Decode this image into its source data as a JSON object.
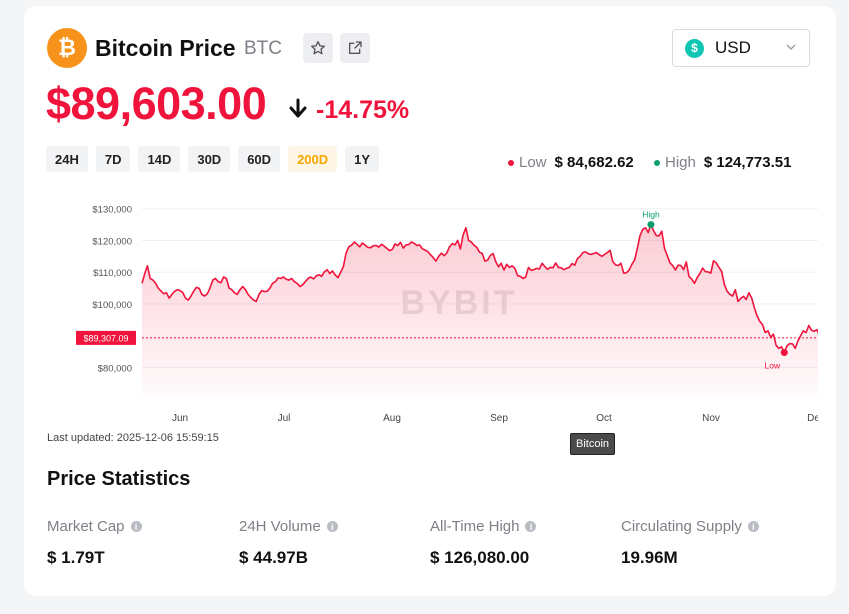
{
  "header": {
    "coin_symbol": "₿",
    "title": "Bitcoin Price",
    "ticker": "BTC",
    "star_icon": "star-icon",
    "share_icon": "external-link-icon"
  },
  "currency": {
    "icon": "$",
    "label": "USD"
  },
  "price": {
    "value": "$89,603.00",
    "change": "-14.75%",
    "color": "#f0143c"
  },
  "ranges": [
    {
      "label": "24H",
      "active": false
    },
    {
      "label": "7D",
      "active": false
    },
    {
      "label": "14D",
      "active": false
    },
    {
      "label": "30D",
      "active": false
    },
    {
      "label": "60D",
      "active": false
    },
    {
      "label": "200D",
      "active": true
    },
    {
      "label": "1Y",
      "active": false
    }
  ],
  "low_high": {
    "low_label": "Low",
    "low_value": "$ 84,682.62",
    "low_color": "#f0143c",
    "high_label": "High",
    "high_value": "$ 124,773.51",
    "high_color": "#0a9e6b"
  },
  "chart_data": {
    "type": "area",
    "yticks": [
      "$130,000",
      "$120,000",
      "$110,000",
      "$100,000",
      "$80,000"
    ],
    "ytick_values": [
      130000,
      120000,
      110000,
      100000,
      80000
    ],
    "ylim": [
      71000,
      134000
    ],
    "xticks": [
      "Jun",
      "Jul",
      "Aug",
      "Sep",
      "Oct",
      "Nov",
      "Dec"
    ],
    "current_price_label": "$89,307.09",
    "current_price": 89307.09,
    "high_marker_label": "High",
    "low_marker_label": "Low",
    "watermark": "BYBIT",
    "series": [
      {
        "values": [
          106500,
          109500,
          112000,
          108000,
          107500,
          106500,
          105000,
          104000,
          103200,
          103500,
          101800,
          103000,
          104000,
          104500,
          104200,
          103600,
          101800,
          101200,
          102500,
          104000,
          105200,
          104900,
          103000,
          102500,
          103200,
          105000,
          107500,
          108000,
          107000,
          106700,
          108500,
          108000,
          105000,
          104500,
          103500,
          103000,
          104500,
          105500,
          104500,
          103000,
          102000,
          101200,
          100800,
          103000,
          104200,
          103900,
          104000,
          105000,
          106500,
          107000,
          108200,
          108000,
          108500,
          107800,
          107500,
          108000,
          107000,
          106500,
          105500,
          106000,
          107000,
          108000,
          108500,
          107900,
          108800,
          109200,
          108700,
          110100,
          110800,
          109600,
          110400,
          109100,
          108300,
          110000,
          111800,
          116000,
          118000,
          118500,
          119500,
          118800,
          118000,
          119200,
          118500,
          117800,
          117700,
          118300,
          118400,
          117900,
          118800,
          118200,
          117500,
          116800,
          117200,
          118900,
          118400,
          119400,
          117600,
          118600,
          118700,
          119500,
          119100,
          118400,
          118600,
          117400,
          117000,
          116500,
          115500,
          114600,
          113500,
          115000,
          116000,
          115200,
          116000,
          118000,
          119000,
          118600,
          120000,
          117300,
          121700,
          124000,
          120000,
          119500,
          118500,
          117800,
          116300,
          115900,
          113500,
          113800,
          115300,
          115900,
          113300,
          111700,
          112800,
          110700,
          112500,
          111500,
          112000,
          111200,
          108900,
          108700,
          108000,
          108500,
          111500,
          110600,
          110800,
          111200,
          111000,
          112800,
          111800,
          110900,
          111500,
          111400,
          112900,
          111500,
          111400,
          110800,
          111200,
          111500,
          112700,
          112200,
          114300,
          115000,
          116200,
          116400,
          115800,
          115600,
          115900,
          116200,
          115500,
          115000,
          115600,
          116200,
          116900,
          113300,
          112300,
          112100,
          112800,
          109700,
          109800,
          110700,
          112500,
          113800,
          117500,
          121500,
          123500,
          124000,
          122500,
          125000,
          123000,
          121500,
          121500,
          122900,
          117500,
          115200,
          112900,
          112100,
          110700,
          112200,
          112100,
          110800,
          113200,
          108600,
          107800,
          106500,
          108300,
          109600,
          111300,
          110200,
          110100,
          109700,
          113600,
          112900,
          111500,
          110200,
          106100,
          104000,
          103000,
          102500,
          104500,
          100800,
          101700,
          102400,
          101400,
          103500,
          101900,
          98800,
          96200,
          94500,
          93500,
          91000,
          91500,
          89500,
          90500,
          87000,
          86000,
          86500,
          84682,
          86800,
          87500,
          87400,
          86000,
          88300,
          90000,
          91500,
          91000,
          93200,
          91700,
          91400,
          91900,
          90000,
          86500,
          92500,
          95500,
          93500,
          92300,
          89307
        ]
      }
    ]
  },
  "last_updated": "Last updated: 2025-12-06 15:59:15",
  "tooltip": "Bitcoin",
  "stats": {
    "title": "Price Statistics",
    "items": [
      {
        "label": "Market Cap",
        "value": "$ 1.79T"
      },
      {
        "label": "24H Volume",
        "value": "$ 44.97B"
      },
      {
        "label": "All-Time High",
        "value": "$ 126,080.00"
      },
      {
        "label": "Circulating Supply",
        "value": "19.96M"
      }
    ]
  }
}
